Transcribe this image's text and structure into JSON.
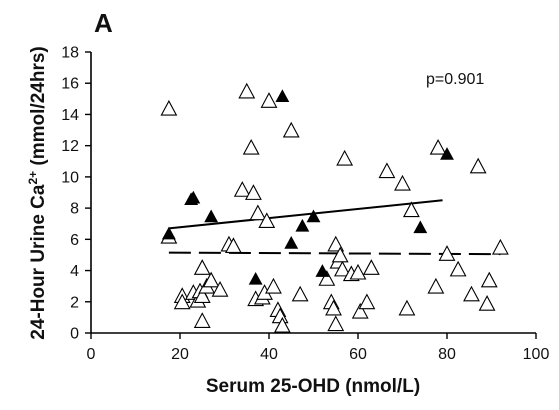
{
  "chart_data": {
    "type": "scatter",
    "panel_label": "A",
    "xlabel": "Serum 25-OHD (nmol/L)",
    "ylabel": {
      "prefix": "24-Hour Urine Ca",
      "superscript": "2+",
      "suffix": " (mmol/24hrs)"
    },
    "xlim": [
      0,
      100
    ],
    "ylim": [
      0,
      18
    ],
    "x_ticks": [
      0,
      20,
      40,
      60,
      80,
      100
    ],
    "y_ticks": [
      0,
      2,
      4,
      6,
      8,
      10,
      12,
      14,
      16,
      18
    ],
    "grid": false,
    "legend": "none",
    "annotation": "p=0.901",
    "series": [
      {
        "marker": "open-triangle",
        "points": [
          [
            17.5,
            14.3
          ],
          [
            17.5,
            6.1
          ],
          [
            20.5,
            2.3
          ],
          [
            20.5,
            1.9
          ],
          [
            23,
            2.5
          ],
          [
            24,
            2.0
          ],
          [
            24.5,
            2.6
          ],
          [
            25,
            4.1
          ],
          [
            25,
            0.7
          ],
          [
            25,
            2.3
          ],
          [
            26,
            2.9
          ],
          [
            27,
            3.3
          ],
          [
            29,
            2.7
          ],
          [
            31,
            5.6
          ],
          [
            32,
            5.5
          ],
          [
            34,
            9.1
          ],
          [
            35,
            15.4
          ],
          [
            36,
            11.8
          ],
          [
            36.5,
            8.9
          ],
          [
            37,
            2.1
          ],
          [
            37.5,
            7.6
          ],
          [
            38.5,
            2.2
          ],
          [
            39,
            2.5
          ],
          [
            39.5,
            7.1
          ],
          [
            40,
            14.8
          ],
          [
            41,
            2.9
          ],
          [
            42,
            1.4
          ],
          [
            42.5,
            1.0
          ],
          [
            43,
            0.4
          ],
          [
            45,
            12.9
          ],
          [
            47,
            2.4
          ],
          [
            53,
            3.4
          ],
          [
            54,
            1.9
          ],
          [
            54.5,
            1.5
          ],
          [
            55,
            0.5
          ],
          [
            55,
            5.6
          ],
          [
            55.5,
            4.5
          ],
          [
            56,
            4.9
          ],
          [
            56.5,
            4.0
          ],
          [
            57,
            11.1
          ],
          [
            58.5,
            3.7
          ],
          [
            60,
            3.8
          ],
          [
            60.5,
            1.3
          ],
          [
            62,
            1.9
          ],
          [
            63,
            4.1
          ],
          [
            66.5,
            10.3
          ],
          [
            70,
            9.5
          ],
          [
            71,
            1.5
          ],
          [
            72,
            7.8
          ],
          [
            77.5,
            2.9
          ],
          [
            78,
            11.8
          ],
          [
            80,
            5.0
          ],
          [
            82.5,
            4.0
          ],
          [
            85.5,
            2.4
          ],
          [
            87,
            10.6
          ],
          [
            89,
            1.8
          ],
          [
            89.5,
            3.3
          ],
          [
            92,
            5.4
          ]
        ]
      },
      {
        "marker": "filled-triangle",
        "points": [
          [
            17.5,
            6.3
          ],
          [
            22.5,
            8.5
          ],
          [
            23,
            8.6
          ],
          [
            27,
            7.4
          ],
          [
            37,
            3.4
          ],
          [
            43,
            15.1
          ],
          [
            45,
            5.7
          ],
          [
            47.5,
            6.8
          ],
          [
            50,
            7.4
          ],
          [
            52,
            3.9
          ],
          [
            74,
            6.7
          ],
          [
            80,
            11.4
          ]
        ]
      }
    ],
    "fit_lines": [
      {
        "style": "solid",
        "x": [
          17.5,
          79
        ],
        "y": [
          6.7,
          8.5
        ]
      },
      {
        "style": "dashed",
        "x": [
          17.5,
          92
        ],
        "y": [
          5.15,
          5.05
        ]
      }
    ]
  }
}
